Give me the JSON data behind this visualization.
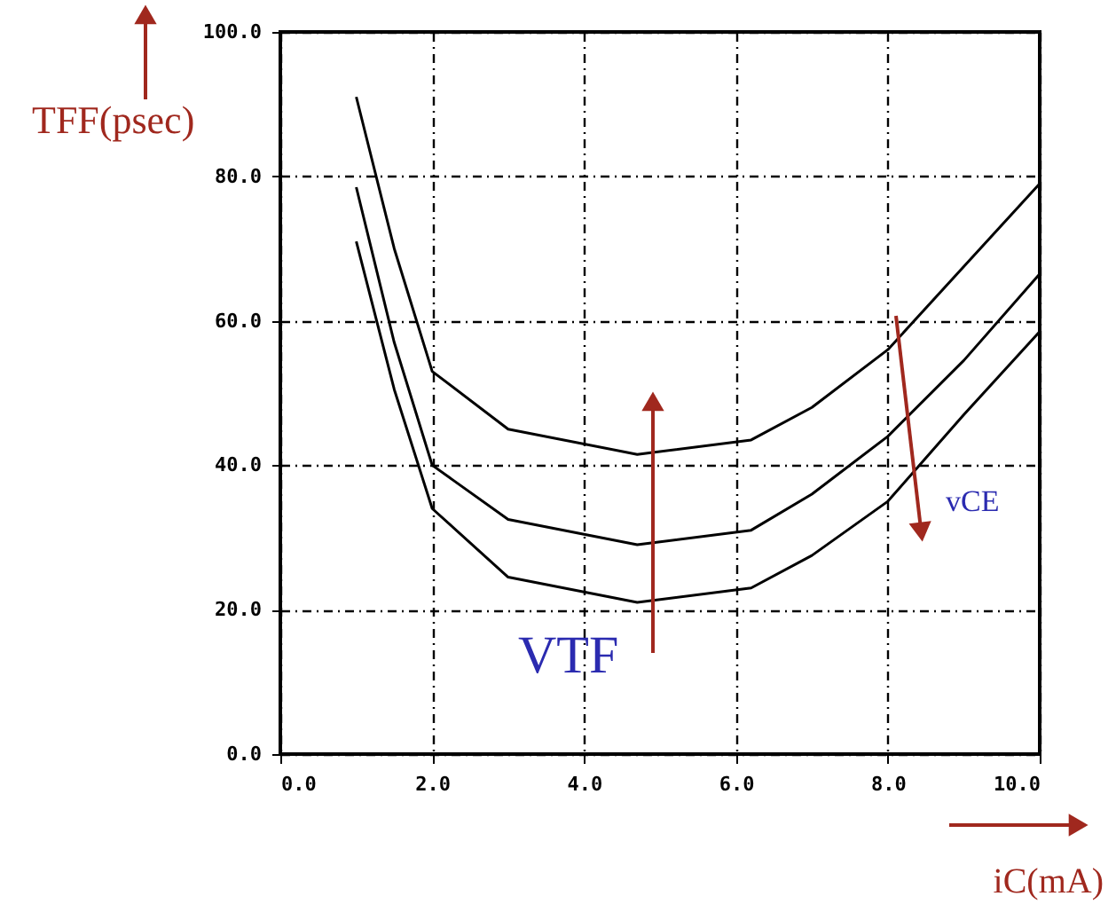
{
  "chart_data": {
    "type": "line",
    "xlabel": "iC(mA)",
    "ylabel": "TFF(psec)",
    "xlim": [
      0,
      10
    ],
    "ylim": [
      0,
      100
    ],
    "xticks": [
      {
        "value": 0,
        "label": "0.0"
      },
      {
        "value": 2,
        "label": "2.0"
      },
      {
        "value": 4,
        "label": "4.0"
      },
      {
        "value": 6,
        "label": "6.0"
      },
      {
        "value": 8,
        "label": "8.0"
      },
      {
        "value": 10,
        "label": "10.0"
      }
    ],
    "yticks": [
      {
        "value": 0,
        "label": "0.0"
      },
      {
        "value": 20,
        "label": "20.0"
      },
      {
        "value": 40,
        "label": "40.0"
      },
      {
        "value": 60,
        "label": "60.0"
      },
      {
        "value": 80,
        "label": "80.0"
      },
      {
        "value": 100,
        "label": "100.0"
      }
    ],
    "x": [
      1.0,
      1.5,
      2.0,
      3.0,
      4.7,
      6.2,
      7.0,
      8.0,
      9.0,
      10.0
    ],
    "series": [
      {
        "color": "#000000",
        "values": [
          91,
          70,
          53,
          45,
          41.5,
          43.5,
          48,
          56,
          67.5,
          79
        ]
      },
      {
        "color": "#000000",
        "values": [
          78.5,
          57,
          40,
          32.5,
          29,
          31,
          36,
          44,
          54.5,
          66.5
        ]
      },
      {
        "color": "#000000",
        "values": [
          71,
          50.5,
          34,
          24.5,
          21,
          23,
          27.5,
          35,
          47,
          58.5
        ]
      }
    ],
    "annotations": [
      "VTF",
      "vCE"
    ],
    "grid": true,
    "marker": "none",
    "line_style": "solid"
  }
}
